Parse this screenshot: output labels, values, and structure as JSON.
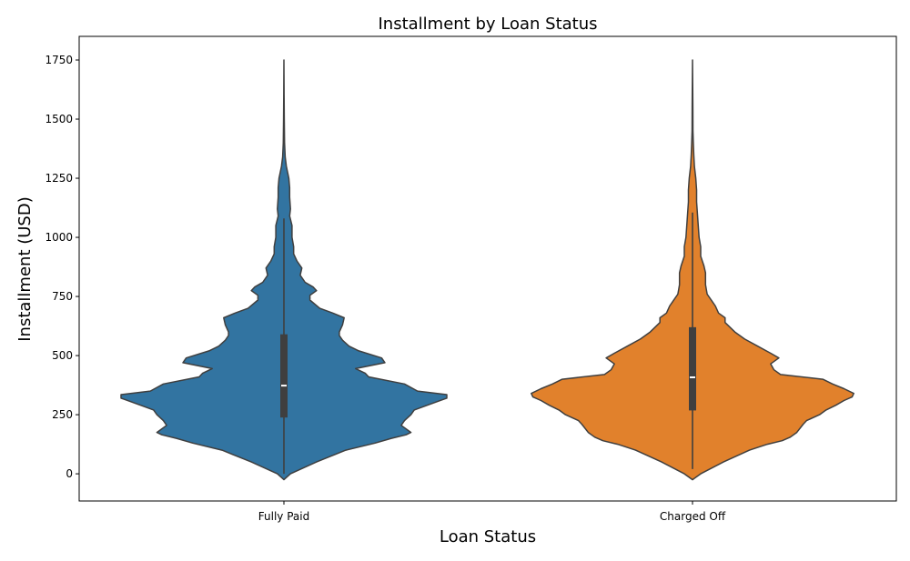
{
  "chart_data": {
    "type": "violin",
    "title": "Installment by Loan Status",
    "xlabel": "Loan Status",
    "ylabel": "Installment (USD)",
    "ylim": [
      -115,
      1850
    ],
    "yticks": [
      0,
      250,
      500,
      750,
      1000,
      1250,
      1500,
      1750
    ],
    "grid": false,
    "categories": [
      "Fully Paid",
      "Charged Off"
    ],
    "series": [
      {
        "category": "Fully Paid",
        "color": "#3274a1",
        "min": 0,
        "max": 1750,
        "q1": 238,
        "median": 373,
        "q3": 590,
        "whisker_low": 0,
        "whisker_high": 1080,
        "density": [
          [
            -25,
            0.0
          ],
          [
            0,
            0.04
          ],
          [
            50,
            0.2
          ],
          [
            100,
            0.38
          ],
          [
            130,
            0.56
          ],
          [
            150,
            0.66
          ],
          [
            165,
            0.75
          ],
          [
            175,
            0.78
          ],
          [
            205,
            0.72
          ],
          [
            225,
            0.74
          ],
          [
            250,
            0.78
          ],
          [
            270,
            0.8
          ],
          [
            290,
            0.88
          ],
          [
            315,
            0.98
          ],
          [
            320,
            1.0
          ],
          [
            335,
            1.0
          ],
          [
            350,
            0.82
          ],
          [
            380,
            0.74
          ],
          [
            410,
            0.52
          ],
          [
            425,
            0.5
          ],
          [
            445,
            0.44
          ],
          [
            470,
            0.62
          ],
          [
            490,
            0.6
          ],
          [
            520,
            0.46
          ],
          [
            540,
            0.4
          ],
          [
            565,
            0.36
          ],
          [
            585,
            0.34
          ],
          [
            600,
            0.34
          ],
          [
            630,
            0.36
          ],
          [
            660,
            0.37
          ],
          [
            680,
            0.3
          ],
          [
            700,
            0.22
          ],
          [
            735,
            0.16
          ],
          [
            755,
            0.16
          ],
          [
            775,
            0.2
          ],
          [
            790,
            0.18
          ],
          [
            810,
            0.13
          ],
          [
            840,
            0.1
          ],
          [
            870,
            0.11
          ],
          [
            900,
            0.08
          ],
          [
            930,
            0.06
          ],
          [
            960,
            0.06
          ],
          [
            1000,
            0.05
          ],
          [
            1050,
            0.05
          ],
          [
            1090,
            0.035
          ],
          [
            1120,
            0.04
          ],
          [
            1170,
            0.035
          ],
          [
            1210,
            0.035
          ],
          [
            1250,
            0.03
          ],
          [
            1300,
            0.015
          ],
          [
            1340,
            0.008
          ],
          [
            1400,
            0.004
          ],
          [
            1500,
            0.002
          ],
          [
            1600,
            0.001
          ],
          [
            1750,
            0.0
          ]
        ]
      },
      {
        "category": "Charged Off",
        "color": "#e1812c",
        "min": 0,
        "max": 1750,
        "q1": 268,
        "median": 408,
        "q3": 620,
        "whisker_low": 20,
        "whisker_high": 1105,
        "density": [
          [
            -25,
            0.0
          ],
          [
            0,
            0.05
          ],
          [
            50,
            0.19
          ],
          [
            100,
            0.35
          ],
          [
            125,
            0.46
          ],
          [
            140,
            0.55
          ],
          [
            155,
            0.6
          ],
          [
            175,
            0.64
          ],
          [
            210,
            0.68
          ],
          [
            225,
            0.7
          ],
          [
            250,
            0.78
          ],
          [
            270,
            0.82
          ],
          [
            290,
            0.88
          ],
          [
            310,
            0.93
          ],
          [
            325,
            0.98
          ],
          [
            340,
            0.99
          ],
          [
            360,
            0.93
          ],
          [
            380,
            0.86
          ],
          [
            400,
            0.8
          ],
          [
            420,
            0.54
          ],
          [
            440,
            0.5
          ],
          [
            465,
            0.48
          ],
          [
            490,
            0.53
          ],
          [
            510,
            0.48
          ],
          [
            540,
            0.4
          ],
          [
            570,
            0.32
          ],
          [
            600,
            0.26
          ],
          [
            640,
            0.2
          ],
          [
            660,
            0.2
          ],
          [
            680,
            0.16
          ],
          [
            710,
            0.14
          ],
          [
            730,
            0.12
          ],
          [
            760,
            0.09
          ],
          [
            800,
            0.08
          ],
          [
            850,
            0.08
          ],
          [
            880,
            0.07
          ],
          [
            920,
            0.05
          ],
          [
            960,
            0.05
          ],
          [
            1000,
            0.04
          ],
          [
            1050,
            0.035
          ],
          [
            1100,
            0.03
          ],
          [
            1150,
            0.025
          ],
          [
            1200,
            0.025
          ],
          [
            1250,
            0.02
          ],
          [
            1300,
            0.012
          ],
          [
            1350,
            0.008
          ],
          [
            1400,
            0.005
          ],
          [
            1450,
            0.003
          ],
          [
            1550,
            0.002
          ],
          [
            1650,
            0.001
          ],
          [
            1750,
            0.0
          ]
        ]
      }
    ]
  }
}
